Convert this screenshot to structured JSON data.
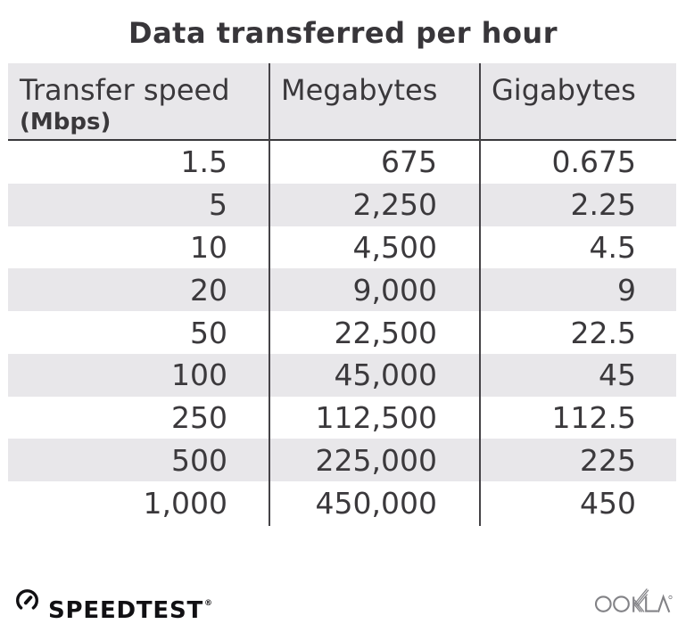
{
  "title": "Data transferred per hour",
  "table": {
    "columns": [
      {
        "label": "Transfer speed",
        "sublabel": "(Mbps)"
      },
      {
        "label": "Megabytes",
        "sublabel": ""
      },
      {
        "label": "Gigabytes",
        "sublabel": ""
      }
    ],
    "rows": [
      [
        "1.5",
        "675",
        "0.675"
      ],
      [
        "5",
        "2,250",
        "2.25"
      ],
      [
        "10",
        "4,500",
        "4.5"
      ],
      [
        "20",
        "9,000",
        "9"
      ],
      [
        "50",
        "22,500",
        "22.5"
      ],
      [
        "100",
        "45,000",
        "45"
      ],
      [
        "250",
        "112,500",
        "112.5"
      ],
      [
        "500",
        "225,000",
        "225"
      ],
      [
        "1,000",
        "450,000",
        "450"
      ]
    ]
  },
  "footer": {
    "speedtest_label": "SPEEDTEST",
    "speedtest_reg": "®",
    "ookla_label": "OOKLA"
  },
  "colors": {
    "text_dark": "#3a383b",
    "stripe": "#e8e7ea",
    "divider": "#454347",
    "logo_black": "#111013",
    "ookla_gray": "#828286",
    "background": "#ffffff"
  },
  "chart_data": {
    "type": "table",
    "title": "Data transferred per hour",
    "columns": [
      "Transfer speed (Mbps)",
      "Megabytes",
      "Gigabytes"
    ],
    "rows": [
      [
        1.5,
        675,
        0.675
      ],
      [
        5,
        2250,
        2.25
      ],
      [
        10,
        4500,
        4.5
      ],
      [
        20,
        9000,
        9
      ],
      [
        50,
        22500,
        22.5
      ],
      [
        100,
        45000,
        45
      ],
      [
        250,
        112500,
        112.5
      ],
      [
        500,
        225000,
        225
      ],
      [
        1000,
        450000,
        450
      ]
    ]
  }
}
